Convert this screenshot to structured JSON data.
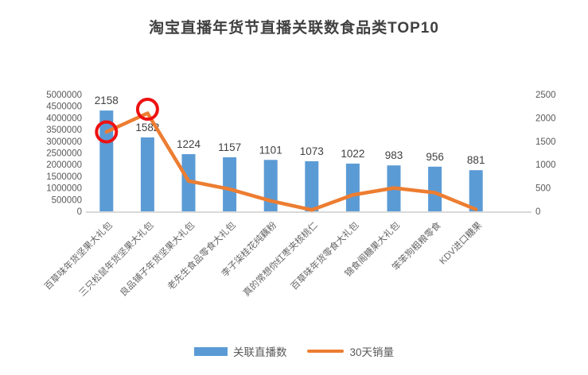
{
  "title": "淘宝直播年货节直播关联数食品类TOP10",
  "chart_data": {
    "type": "bar",
    "subtype": "combo-bar-line-dual-axis",
    "title": "淘宝直播年货节直播关联数食品类TOP10",
    "categories": [
      "百草味年货坚果大礼包",
      "三只松鼠年货坚果大礼包",
      "良品铺子年货坚果大礼包",
      "老先生食品零食大礼包",
      "李子柒桂花纯藕粉",
      "真的常想你红枣夹核桃仁",
      "百草味年货零食大礼包",
      "锦食阁糖果大礼包",
      "笨笨狗粗粮零食",
      "KDV进口糖果"
    ],
    "series": [
      {
        "name": "关联直播数",
        "type": "bar",
        "axis": "right",
        "color": "#5B9BD5",
        "values": [
          2158,
          1582,
          1224,
          1157,
          1101,
          1073,
          1022,
          983,
          956,
          881
        ],
        "data_labels_shown": true
      },
      {
        "name": "30天销量",
        "type": "line",
        "axis": "left",
        "color": "#ED7D31",
        "values": [
          3400000,
          4200000,
          1300000,
          950000,
          450000,
          60000,
          700000,
          1000000,
          800000,
          80000
        ],
        "data_labels_shown": false
      }
    ],
    "left_axis": {
      "min": 0,
      "max": 5000000,
      "step": 500000,
      "ticks": [
        5000000,
        4500000,
        4000000,
        3500000,
        3000000,
        2500000,
        2000000,
        1500000,
        1000000,
        500000,
        0
      ]
    },
    "right_axis": {
      "min": 0,
      "max": 2500,
      "step": 500,
      "ticks": [
        2500,
        2000,
        1500,
        1000,
        500,
        0
      ]
    },
    "grid": "off",
    "legend_position": "bottom",
    "annotations": {
      "red_circle_on_line_points": [
        0,
        1
      ],
      "circle_color": "#EE1111"
    }
  },
  "legend": {
    "items": [
      {
        "label": "关联直播数",
        "color": "#5B9BD5",
        "shape": "rect"
      },
      {
        "label": "30天销量",
        "color": "#ED7D31",
        "shape": "line"
      }
    ]
  },
  "colors": {
    "bar": "#5B9BD5",
    "line": "#ED7D31",
    "highlight_circle": "#EE1111",
    "title_text": "#404040",
    "axis_text": "#595959",
    "bar_label_text": "#404040",
    "axis_line": "#D9D9D9",
    "background": "#FFFFFF"
  }
}
